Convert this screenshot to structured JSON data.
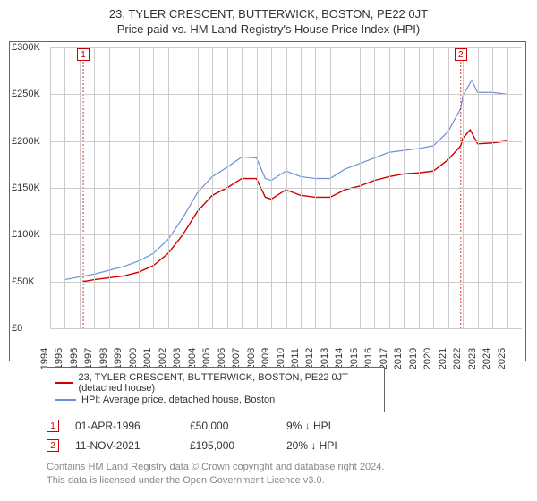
{
  "title": "23, TYLER CRESCENT, BUTTERWICK, BOSTON, PE22 0JT",
  "subtitle": "Price paid vs. HM Land Registry's House Price Index (HPI)",
  "chart": {
    "type": "line",
    "background_color": "#ffffff",
    "grid_color": "#cccccc",
    "border_color": "#666666",
    "x": {
      "min": 1994,
      "max": 2026,
      "ticks": [
        1994,
        1995,
        1996,
        1997,
        1998,
        1999,
        2000,
        2001,
        2002,
        2003,
        2004,
        2005,
        2006,
        2007,
        2008,
        2009,
        2010,
        2011,
        2012,
        2013,
        2014,
        2015,
        2016,
        2017,
        2018,
        2019,
        2020,
        2021,
        2022,
        2023,
        2024,
        2025
      ]
    },
    "y": {
      "min": 0,
      "max": 300,
      "unit_prefix": "£",
      "unit_suffix": "K",
      "ticks": [
        0,
        50,
        100,
        150,
        200,
        250,
        300
      ]
    },
    "series": [
      {
        "name": "23, TYLER CRESCENT, BUTTERWICK, BOSTON, PE22 0JT (detached house)",
        "color": "#cc0000",
        "width": 1.4,
        "points": [
          [
            1996.25,
            50
          ],
          [
            1997,
            52
          ],
          [
            1998,
            54
          ],
          [
            1999,
            56
          ],
          [
            2000,
            60
          ],
          [
            2001,
            67
          ],
          [
            2002,
            80
          ],
          [
            2003,
            100
          ],
          [
            2004,
            125
          ],
          [
            2005,
            142
          ],
          [
            2006,
            150
          ],
          [
            2007,
            160
          ],
          [
            2008,
            160
          ],
          [
            2008.6,
            140
          ],
          [
            2009,
            138
          ],
          [
            2010,
            148
          ],
          [
            2011,
            142
          ],
          [
            2012,
            140
          ],
          [
            2013,
            140
          ],
          [
            2014,
            148
          ],
          [
            2015,
            152
          ],
          [
            2016,
            158
          ],
          [
            2017,
            162
          ],
          [
            2018,
            165
          ],
          [
            2019,
            166
          ],
          [
            2020,
            168
          ],
          [
            2021,
            180
          ],
          [
            2021.86,
            195
          ],
          [
            2022,
            203
          ],
          [
            2022.5,
            212
          ],
          [
            2023,
            197
          ],
          [
            2024,
            198
          ],
          [
            2025,
            200
          ]
        ]
      },
      {
        "name": "HPI: Average price, detached house, Boston",
        "color": "#6a8fd8",
        "width": 1.2,
        "points": [
          [
            1995,
            52
          ],
          [
            1996,
            55
          ],
          [
            1997,
            58
          ],
          [
            1998,
            62
          ],
          [
            1999,
            66
          ],
          [
            2000,
            72
          ],
          [
            2001,
            80
          ],
          [
            2002,
            95
          ],
          [
            2003,
            118
          ],
          [
            2004,
            145
          ],
          [
            2005,
            162
          ],
          [
            2006,
            172
          ],
          [
            2007,
            183
          ],
          [
            2008,
            182
          ],
          [
            2008.6,
            160
          ],
          [
            2009,
            158
          ],
          [
            2010,
            168
          ],
          [
            2011,
            162
          ],
          [
            2012,
            160
          ],
          [
            2013,
            160
          ],
          [
            2014,
            170
          ],
          [
            2015,
            176
          ],
          [
            2016,
            182
          ],
          [
            2017,
            188
          ],
          [
            2018,
            190
          ],
          [
            2019,
            192
          ],
          [
            2020,
            195
          ],
          [
            2021,
            210
          ],
          [
            2021.86,
            235
          ],
          [
            2022,
            248
          ],
          [
            2022.6,
            265
          ],
          [
            2023,
            252
          ],
          [
            2024,
            252
          ],
          [
            2025,
            250
          ]
        ]
      }
    ],
    "markers": [
      {
        "id": "1",
        "x": 1996.25,
        "y_at_top": true
      },
      {
        "id": "2",
        "x": 2021.86,
        "y_at_top": true
      }
    ]
  },
  "legend": {
    "items": [
      {
        "color": "#cc0000",
        "label": "23, TYLER CRESCENT, BUTTERWICK, BOSTON, PE22 0JT (detached house)"
      },
      {
        "color": "#6a8fd8",
        "label": "HPI: Average price, detached house, Boston"
      }
    ]
  },
  "transactions": [
    {
      "marker": "1",
      "date": "01-APR-1996",
      "price": "£50,000",
      "delta": "9%",
      "direction": "down",
      "vs": "HPI"
    },
    {
      "marker": "2",
      "date": "11-NOV-2021",
      "price": "£195,000",
      "delta": "20%",
      "direction": "down",
      "vs": "HPI"
    }
  ],
  "footer": {
    "line1": "Contains HM Land Registry data © Crown copyright and database right 2024.",
    "line2": "This data is licensed under the Open Government Licence v3.0."
  },
  "style": {
    "title_fontsize": 13,
    "axis_fontsize": 11,
    "legend_fontsize": 11,
    "footer_color": "#888888",
    "marker_border_color": "#cc0000"
  }
}
